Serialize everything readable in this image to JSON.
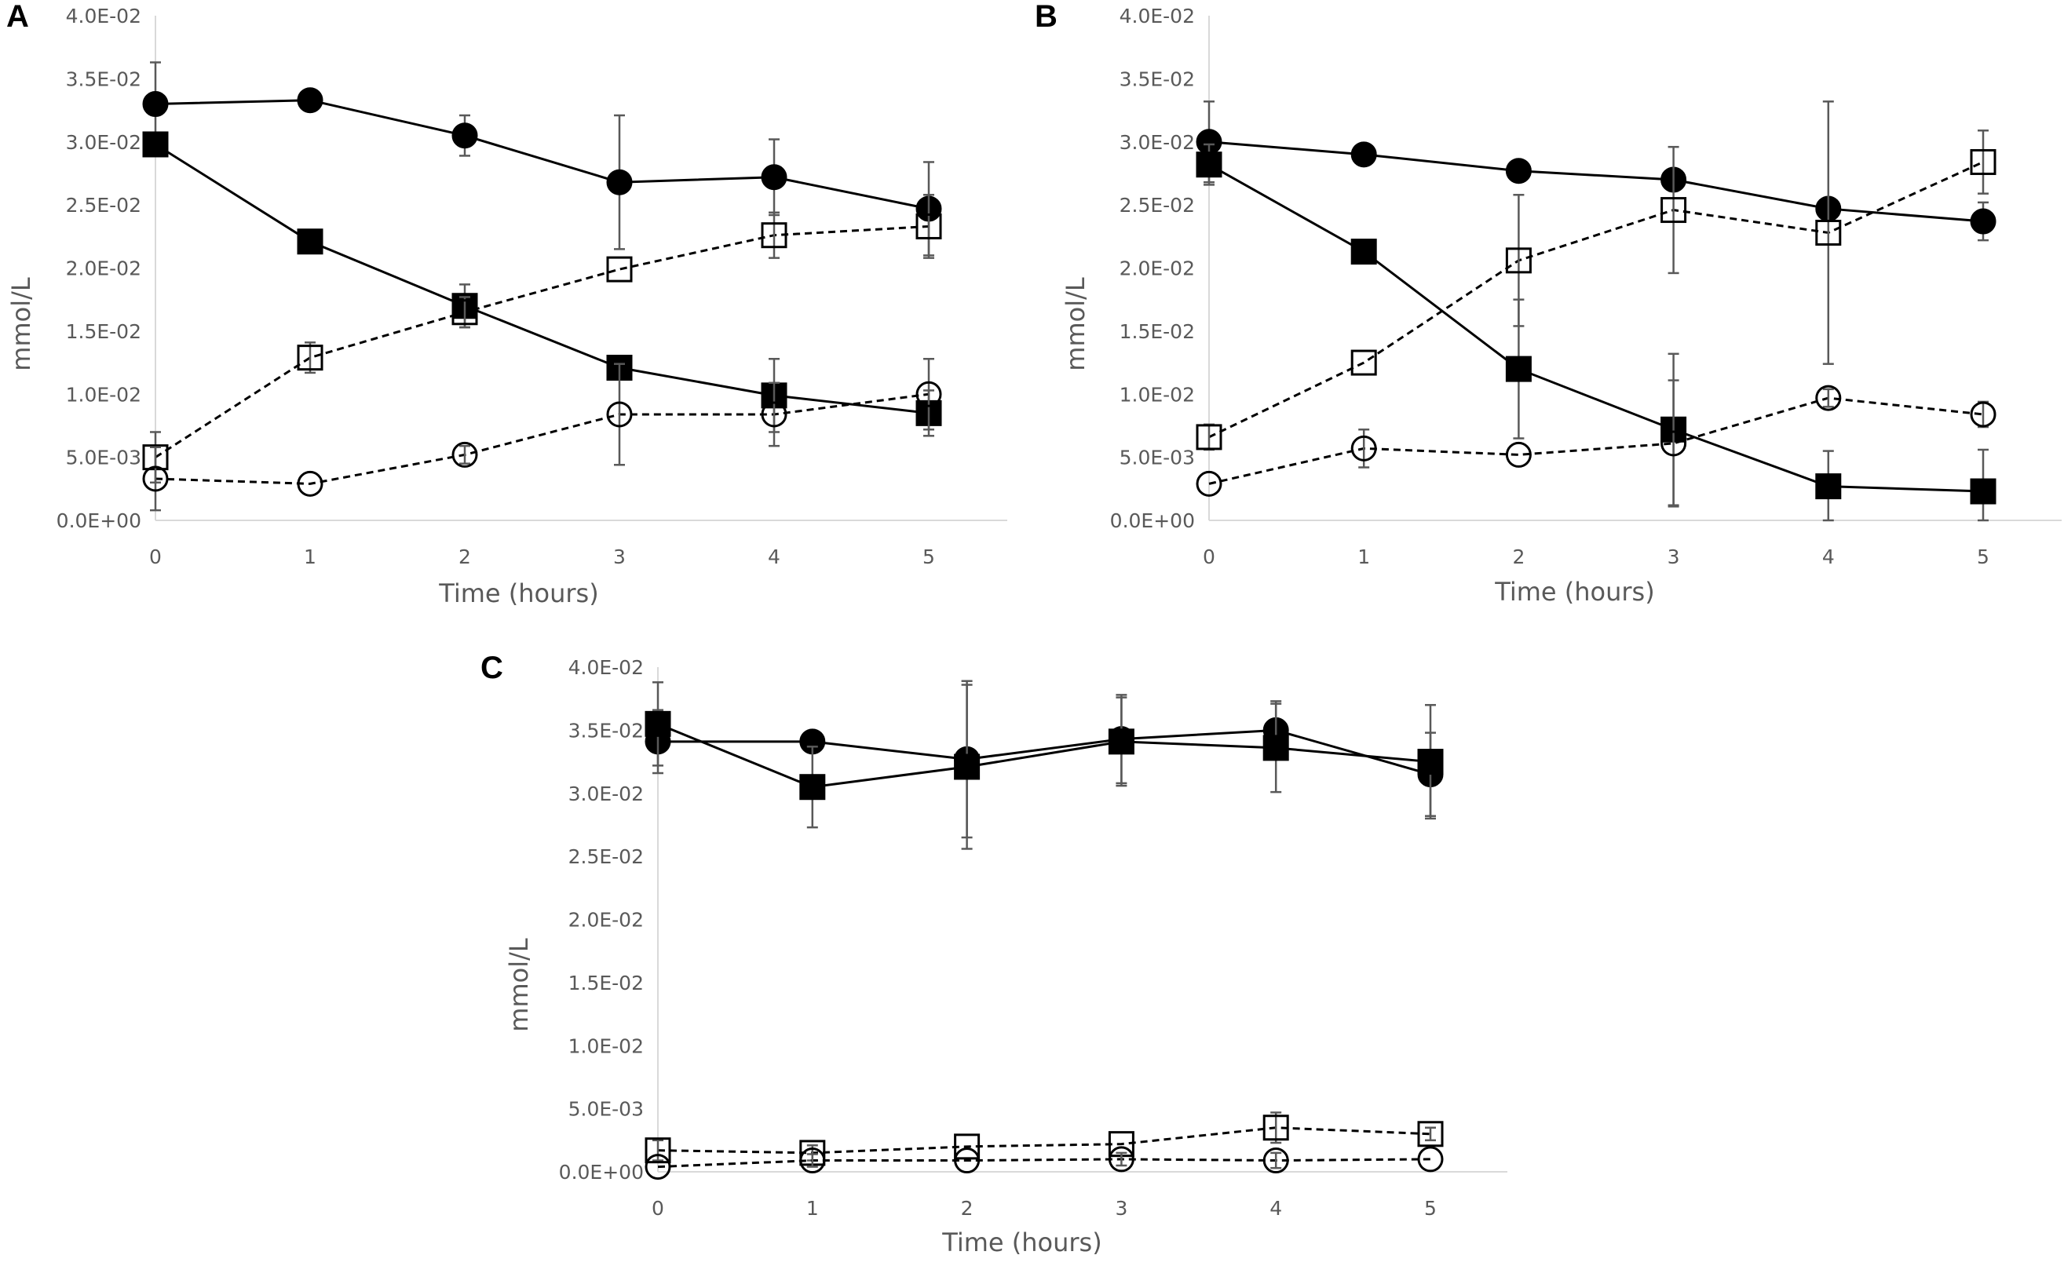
{
  "chart_data": [
    {
      "panel": "A",
      "type": "line",
      "xlabel": "Time (hours)",
      "ylabel": "mmol/L",
      "x": [
        0,
        1,
        2,
        3,
        4,
        5
      ],
      "xticks": [
        "0",
        "1",
        "2",
        "3",
        "4",
        "5"
      ],
      "yticks": [
        "0.0E+00",
        "5.0E-03",
        "1.0E-02",
        "1.5E-02",
        "2.0E-02",
        "2.5E-02",
        "3.0E-02",
        "3.5E-02",
        "4.0E-02"
      ],
      "ylim": [
        0,
        0.04
      ],
      "series": [
        {
          "name": "filled-circle",
          "marker": "circle",
          "filled": true,
          "dashed": false,
          "values": [
            0.033,
            0.0333,
            0.0305,
            0.0268,
            0.0272,
            0.0247
          ],
          "errors": [
            0.0033,
            0,
            0.0016,
            0.0053,
            0.003,
            0.0037
          ]
        },
        {
          "name": "filled-square",
          "marker": "square",
          "filled": true,
          "dashed": false,
          "values": [
            0.0298,
            0.0221,
            0.017,
            0.0121,
            0.0099,
            0.0085
          ],
          "errors": [
            0,
            0,
            0.0017,
            0,
            0.0029,
            0.0018
          ]
        },
        {
          "name": "open-square",
          "marker": "square",
          "filled": false,
          "dashed": true,
          "values": [
            0.005,
            0.0129,
            0.0165,
            0.0199,
            0.0226,
            0.0233
          ],
          "errors": [
            0.002,
            0.0012,
            0.0012,
            0,
            0.0018,
            0.0025
          ]
        },
        {
          "name": "open-circle",
          "marker": "circle",
          "filled": false,
          "dashed": true,
          "values": [
            0.0033,
            0.0029,
            0.0052,
            0.0084,
            0.0084,
            0.01
          ],
          "errors": [
            0.0025,
            0,
            0.0007,
            0.004,
            0.0025,
            0.0028
          ]
        }
      ]
    },
    {
      "panel": "B",
      "type": "line",
      "xlabel": "Time (hours)",
      "ylabel": "mmol/L",
      "x": [
        0,
        1,
        2,
        3,
        4,
        5
      ],
      "xticks": [
        "0",
        "1",
        "2",
        "3",
        "4",
        "5"
      ],
      "yticks": [
        "0.0E+00",
        "5.0E-03",
        "1.0E-02",
        "1.5E-02",
        "2.0E-02",
        "2.5E-02",
        "3.0E-02",
        "3.5E-02",
        "4.0E-02"
      ],
      "ylim": [
        0,
        0.04
      ],
      "series": [
        {
          "name": "filled-circle",
          "marker": "circle",
          "filled": true,
          "dashed": false,
          "values": [
            0.03,
            0.029,
            0.0277,
            0.027,
            0.0247,
            0.0237
          ],
          "errors": [
            0.0032,
            0,
            0,
            0,
            0,
            0.0015
          ]
        },
        {
          "name": "filled-square",
          "marker": "square",
          "filled": true,
          "dashed": false,
          "values": [
            0.0282,
            0.0213,
            0.012,
            0.0072,
            0.0027,
            0.0023
          ],
          "errors": [
            0.0016,
            0,
            0.0055,
            0.006,
            0.0028,
            0.0033
          ]
        },
        {
          "name": "open-square",
          "marker": "square",
          "filled": false,
          "dashed": true,
          "values": [
            0.0066,
            0.0125,
            0.0206,
            0.0246,
            0.0228,
            0.0284
          ],
          "errors": [
            0.001,
            0,
            0.0052,
            0.005,
            0.0104,
            0.0025
          ]
        },
        {
          "name": "open-circle",
          "marker": "circle",
          "filled": false,
          "dashed": true,
          "values": [
            0.0029,
            0.0057,
            0.0052,
            0.0061,
            0.0097,
            0.0084
          ],
          "errors": [
            0,
            0.0015,
            0,
            0.005,
            0.0007,
            0.001
          ]
        }
      ]
    },
    {
      "panel": "C",
      "type": "line",
      "xlabel": "Time (hours)",
      "ylabel": "mmol/L",
      "x": [
        0,
        1,
        2,
        3,
        4,
        5
      ],
      "xticks": [
        "0",
        "1",
        "2",
        "3",
        "4",
        "5"
      ],
      "yticks": [
        "0.0E+00",
        "5.0E-03",
        "1.0E-02",
        "1.5E-02",
        "2.0E-02",
        "2.5E-02",
        "3.0E-02",
        "3.5E-02",
        "4.0E-02"
      ],
      "ylim": [
        0,
        0.04
      ],
      "series": [
        {
          "name": "filled-circle",
          "marker": "circle",
          "filled": true,
          "dashed": false,
          "values": [
            0.0341,
            0.0341,
            0.0327,
            0.0343,
            0.035,
            0.0315
          ],
          "errors": [
            0.0025,
            0,
            0.0062,
            0.0035,
            0.0023,
            0.0033
          ]
        },
        {
          "name": "filled-square",
          "marker": "square",
          "filled": true,
          "dashed": false,
          "values": [
            0.0355,
            0.0305,
            0.0321,
            0.0341,
            0.0336,
            0.0325
          ],
          "errors": [
            0.0033,
            0.0032,
            0.0065,
            0.0035,
            0.0035,
            0.0045
          ]
        },
        {
          "name": "open-square",
          "marker": "square",
          "filled": false,
          "dashed": true,
          "values": [
            0.0017,
            0.0015,
            0.002,
            0.0022,
            0.0035,
            0.003
          ],
          "errors": [
            0.0008,
            0.0006,
            0,
            0,
            0.0012,
            0.0005
          ]
        },
        {
          "name": "open-circle",
          "marker": "circle",
          "filled": false,
          "dashed": true,
          "values": [
            0.0004,
            0.0009,
            0.0009,
            0.001,
            0.0009,
            0.001
          ],
          "errors": [
            0,
            0.0005,
            0,
            0.0005,
            0.0006,
            0
          ]
        }
      ]
    }
  ]
}
